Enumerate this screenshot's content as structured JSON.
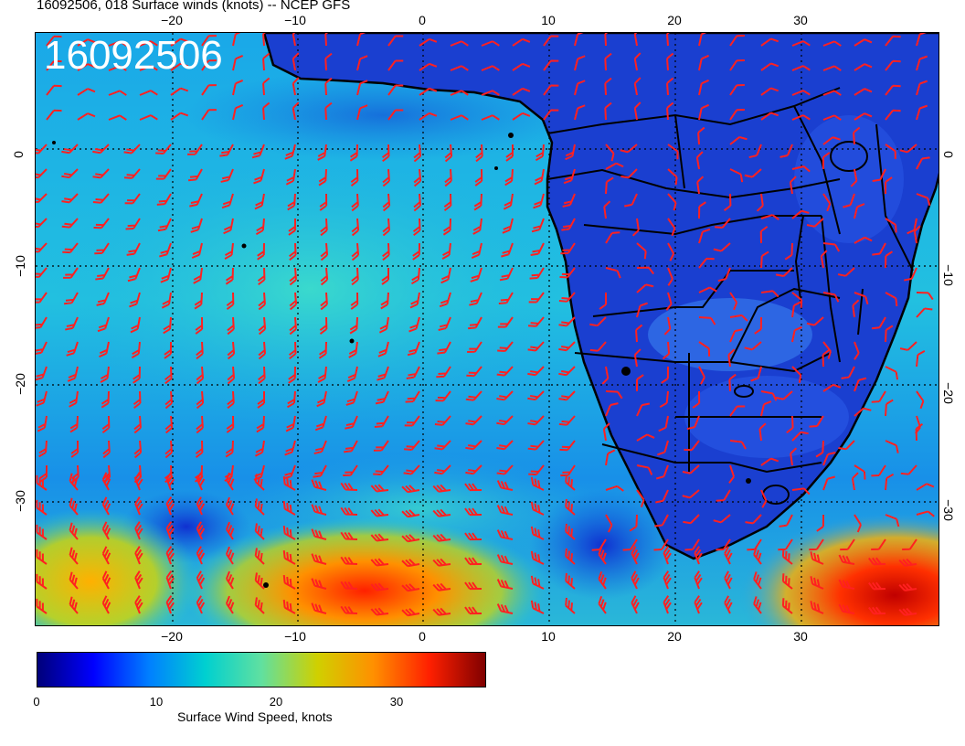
{
  "header": {
    "title": "16092506, 018 Surface winds (knots) -- NCEP GFS",
    "stamp": "16092506"
  },
  "map": {
    "lon_ticks": [
      "−20",
      "−10",
      "0",
      "10",
      "20",
      "30"
    ],
    "lat_ticks": [
      "0",
      "−10",
      "−20",
      "−30"
    ],
    "grid": "dotted",
    "overlay": "red wind barbs",
    "coastline_color": "#000000",
    "barb_color": "#ff2020"
  },
  "colorbar": {
    "ticks": [
      "0",
      "10",
      "20",
      "30"
    ],
    "label": "Surface Wind Speed, knots",
    "range": [
      0,
      37
    ],
    "colors": [
      "#00007a",
      "#0000ff",
      "#0080ff",
      "#00d0d0",
      "#60e0a0",
      "#d0d000",
      "#ff9000",
      "#ff2000",
      "#800000"
    ]
  }
}
